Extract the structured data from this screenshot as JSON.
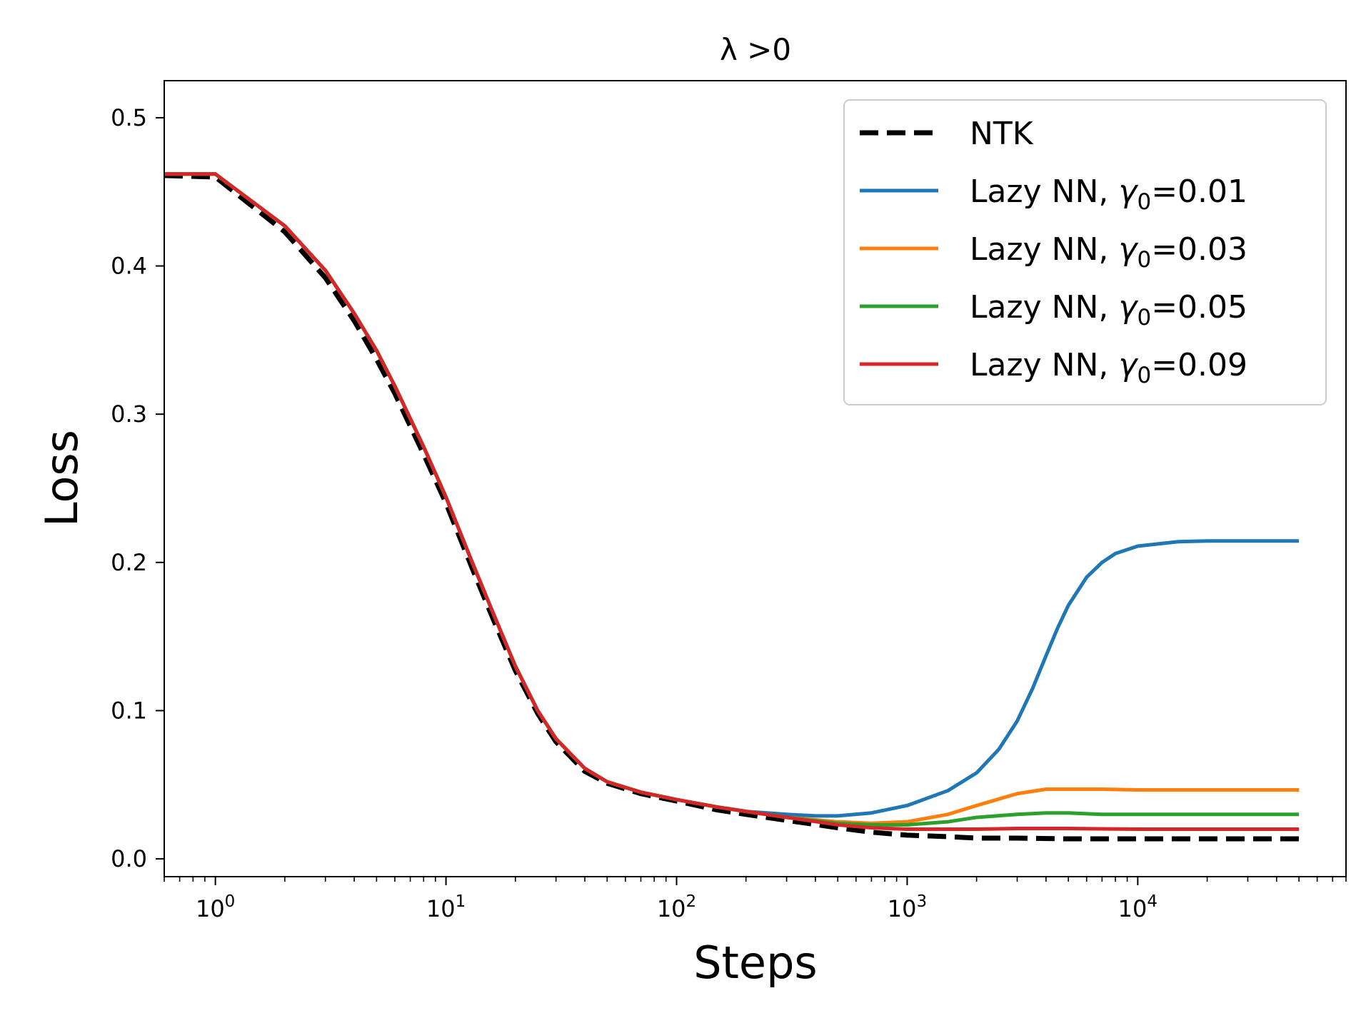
{
  "chart_data": {
    "type": "line",
    "title": "λ >0",
    "xlabel": "Steps",
    "ylabel": "Loss",
    "xscale": "log",
    "xlim": [
      0.6,
      80000
    ],
    "ylim": [
      -0.012,
      0.525
    ],
    "xticks": [
      {
        "value": 1,
        "base": "10",
        "exp": "0"
      },
      {
        "value": 10,
        "base": "10",
        "exp": "1"
      },
      {
        "value": 100,
        "base": "10",
        "exp": "2"
      },
      {
        "value": 1000,
        "base": "10",
        "exp": "3"
      },
      {
        "value": 10000,
        "base": "10",
        "exp": "4"
      }
    ],
    "yticks": [
      {
        "value": 0.0,
        "label": "0.0"
      },
      {
        "value": 0.1,
        "label": "0.1"
      },
      {
        "value": 0.2,
        "label": "0.2"
      },
      {
        "value": 0.3,
        "label": "0.3"
      },
      {
        "value": 0.4,
        "label": "0.4"
      },
      {
        "value": 0.5,
        "label": "0.5"
      }
    ],
    "legend_position": "top-right",
    "series": [
      {
        "name": "NTK",
        "label_prefix": "NTK",
        "gamma": "",
        "color": "#000000",
        "dashed": true,
        "x": [
          0.6,
          1,
          2,
          3,
          4,
          5,
          6,
          8,
          10,
          13,
          16,
          20,
          25,
          30,
          40,
          50,
          70,
          100,
          150,
          200,
          300,
          500,
          700,
          1000,
          1500,
          2000,
          3000,
          5000,
          10000,
          20000,
          50000
        ],
        "y": [
          0.461,
          0.46,
          0.423,
          0.392,
          0.363,
          0.337,
          0.314,
          0.273,
          0.24,
          0.196,
          0.162,
          0.127,
          0.098,
          0.079,
          0.059,
          0.051,
          0.044,
          0.039,
          0.033,
          0.03,
          0.026,
          0.021,
          0.018,
          0.016,
          0.015,
          0.014,
          0.014,
          0.0135,
          0.0135,
          0.0135,
          0.0135
        ]
      },
      {
        "name": "Lazy NN, γ0=0.01",
        "label_prefix": "Lazy NN, ",
        "gamma": "=0.01",
        "color": "#1f77b4",
        "dashed": false,
        "x": [
          0.6,
          1,
          2,
          3,
          4,
          5,
          6,
          8,
          10,
          13,
          16,
          20,
          25,
          30,
          40,
          50,
          70,
          100,
          150,
          200,
          300,
          400,
          500,
          700,
          1000,
          1500,
          2000,
          2500,
          3000,
          3500,
          4000,
          4500,
          5000,
          6000,
          7000,
          8000,
          10000,
          15000,
          20000,
          30000,
          50000
        ],
        "y": [
          0.462,
          0.462,
          0.427,
          0.397,
          0.368,
          0.343,
          0.319,
          0.278,
          0.244,
          0.2,
          0.166,
          0.13,
          0.1,
          0.081,
          0.061,
          0.052,
          0.045,
          0.04,
          0.035,
          0.032,
          0.03,
          0.029,
          0.029,
          0.031,
          0.036,
          0.046,
          0.058,
          0.074,
          0.093,
          0.115,
          0.137,
          0.156,
          0.171,
          0.19,
          0.2,
          0.206,
          0.211,
          0.214,
          0.2145,
          0.2145,
          0.2145
        ]
      },
      {
        "name": "Lazy NN, γ0=0.03",
        "label_prefix": "Lazy NN, ",
        "gamma": "=0.03",
        "color": "#ff7f0e",
        "dashed": false,
        "x": [
          0.6,
          1,
          2,
          3,
          4,
          5,
          6,
          8,
          10,
          13,
          16,
          20,
          25,
          30,
          40,
          50,
          70,
          100,
          150,
          200,
          300,
          500,
          700,
          1000,
          1500,
          2000,
          3000,
          4000,
          5000,
          7000,
          10000,
          20000,
          50000
        ],
        "y": [
          0.462,
          0.462,
          0.427,
          0.397,
          0.368,
          0.343,
          0.319,
          0.278,
          0.244,
          0.2,
          0.166,
          0.13,
          0.1,
          0.081,
          0.061,
          0.052,
          0.045,
          0.04,
          0.035,
          0.032,
          0.028,
          0.025,
          0.024,
          0.025,
          0.03,
          0.036,
          0.044,
          0.047,
          0.047,
          0.047,
          0.0465,
          0.0465,
          0.0465
        ]
      },
      {
        "name": "Lazy NN, γ0=0.05",
        "label_prefix": "Lazy NN, ",
        "gamma": "=0.05",
        "color": "#2ca02c",
        "dashed": false,
        "x": [
          0.6,
          1,
          2,
          3,
          4,
          5,
          6,
          8,
          10,
          13,
          16,
          20,
          25,
          30,
          40,
          50,
          70,
          100,
          150,
          200,
          300,
          500,
          700,
          1000,
          1500,
          2000,
          3000,
          4000,
          5000,
          7000,
          10000,
          20000,
          50000
        ],
        "y": [
          0.462,
          0.462,
          0.427,
          0.397,
          0.368,
          0.343,
          0.319,
          0.278,
          0.244,
          0.2,
          0.166,
          0.13,
          0.1,
          0.081,
          0.061,
          0.052,
          0.045,
          0.04,
          0.035,
          0.032,
          0.028,
          0.024,
          0.023,
          0.023,
          0.025,
          0.028,
          0.03,
          0.031,
          0.031,
          0.03,
          0.03,
          0.03,
          0.03
        ]
      },
      {
        "name": "Lazy NN, γ0=0.09",
        "label_prefix": "Lazy NN, ",
        "gamma": "=0.09",
        "color": "#d62728",
        "dashed": false,
        "x": [
          0.6,
          1,
          2,
          3,
          4,
          5,
          6,
          8,
          10,
          13,
          16,
          20,
          25,
          30,
          40,
          50,
          70,
          100,
          150,
          200,
          300,
          500,
          700,
          1000,
          1500,
          2000,
          3000,
          5000,
          10000,
          20000,
          50000
        ],
        "y": [
          0.462,
          0.462,
          0.427,
          0.397,
          0.368,
          0.343,
          0.319,
          0.278,
          0.244,
          0.2,
          0.166,
          0.13,
          0.1,
          0.081,
          0.061,
          0.052,
          0.045,
          0.04,
          0.035,
          0.032,
          0.028,
          0.023,
          0.021,
          0.02,
          0.02,
          0.02,
          0.0205,
          0.0205,
          0.02,
          0.02,
          0.02
        ]
      }
    ]
  }
}
